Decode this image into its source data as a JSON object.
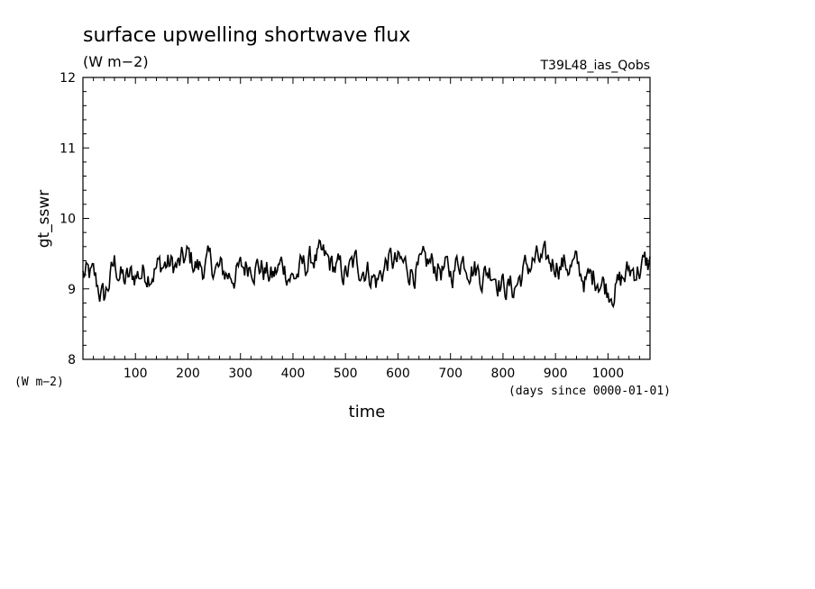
{
  "chart_data": {
    "type": "line",
    "title": "surface upwelling shortwave flux",
    "subtitle": "(W m−2)",
    "run_label": "T39L48_ias_Qobs",
    "ylabel": "gt_sswr",
    "yunit": "(W m−2)",
    "xlabel": "time",
    "xunit": "(days since 0000-01-01)",
    "xlim": [
      0,
      1080
    ],
    "ylim": [
      8,
      12
    ],
    "x_ticks": [
      100,
      200,
      300,
      400,
      500,
      600,
      700,
      800,
      900,
      1000
    ],
    "y_ticks": [
      8,
      9,
      10,
      11,
      12
    ],
    "grid": false,
    "line_color": "#000000",
    "series": [
      {
        "x": [
          0,
          20,
          40,
          60,
          80,
          100,
          120,
          140,
          160,
          180,
          200,
          220,
          240,
          260,
          280,
          300,
          320,
          340,
          360,
          380,
          400,
          420,
          440,
          460,
          480,
          500,
          520,
          540,
          560,
          580,
          600,
          620,
          640,
          660,
          680,
          700,
          720,
          740,
          760,
          780,
          800,
          820,
          840,
          860,
          880,
          900,
          920,
          940,
          960,
          980,
          1000,
          1020,
          1040,
          1060,
          1080
        ],
        "y": [
          9.2,
          9.15,
          8.85,
          9.35,
          9.1,
          9.2,
          9.25,
          9.3,
          9.35,
          9.3,
          9.45,
          9.3,
          9.35,
          9.25,
          9.2,
          9.25,
          9.4,
          9.3,
          9.15,
          9.35,
          9.15,
          9.3,
          9.45,
          9.4,
          9.3,
          9.2,
          9.35,
          9.3,
          9.1,
          9.4,
          9.35,
          9.3,
          9.25,
          9.35,
          9.3,
          9.2,
          9.45,
          9.35,
          9.2,
          9.3,
          9.05,
          9.0,
          9.25,
          9.4,
          9.35,
          9.4,
          9.35,
          9.3,
          9.1,
          9.2,
          9.0,
          9.05,
          9.25,
          9.3,
          9.35
        ]
      }
    ]
  }
}
